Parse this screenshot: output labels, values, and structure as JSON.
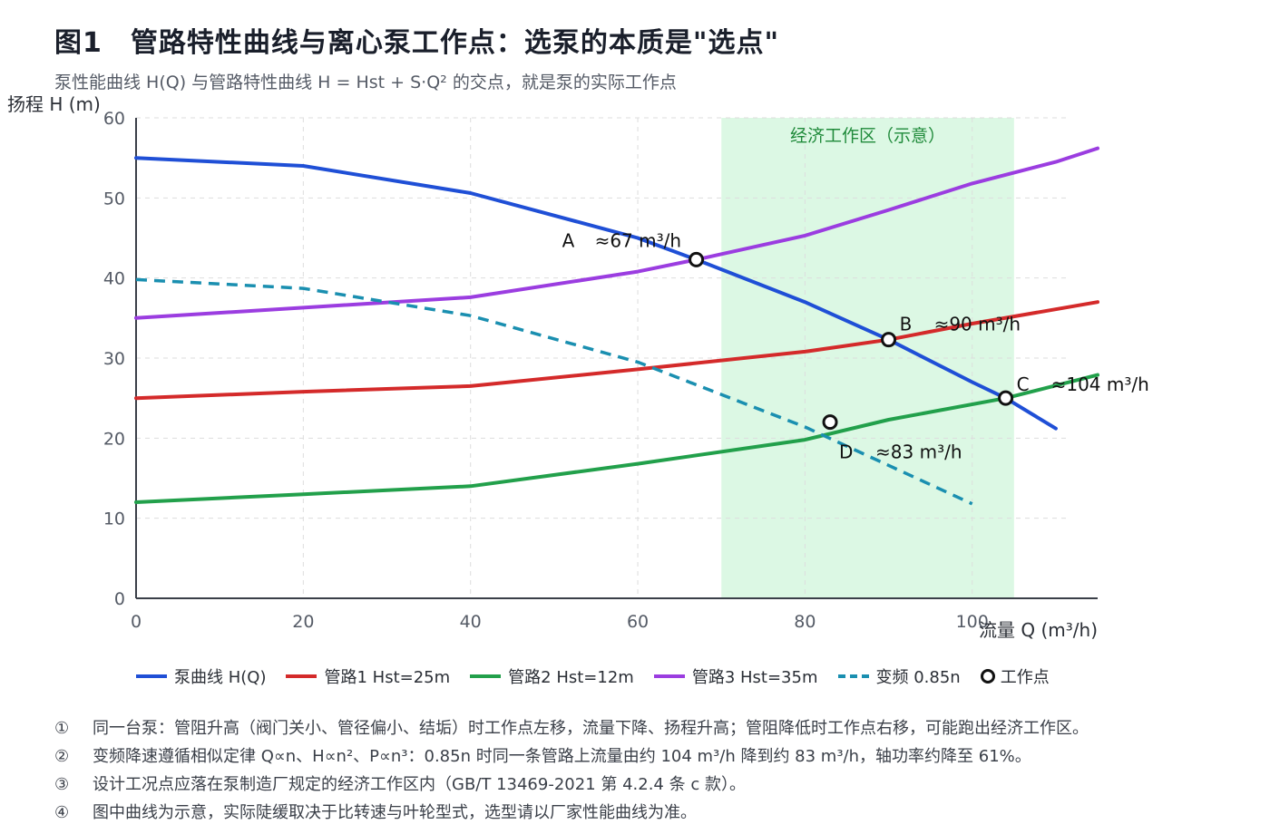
{
  "title": "图1　管路特性曲线与离心泵工作点：选泵的本质是\"选点\"",
  "subtitle": "泵性能曲线 H(Q) 与管路特性曲线 H = Hst + S·Q² 的交点，就是泵的实际工作点",
  "chart_data": {
    "type": "line",
    "ylabel": "扬程 H (m)",
    "xlabel": "流量 Q (m³/h)",
    "xlim": [
      0,
      115
    ],
    "ylim": [
      0,
      60
    ],
    "x_ticks": [
      "0",
      "20",
      "40",
      "60",
      "80",
      "100"
    ],
    "y_ticks": [
      "0",
      "10",
      "20",
      "30",
      "40",
      "50",
      "60"
    ],
    "grid": true,
    "shaded_region": {
      "label": "经济工作区（示意）",
      "x_range": [
        70,
        105
      ],
      "color": "#dcf8e4"
    },
    "series": [
      {
        "name": "泵曲线 H(Q)",
        "color": "#1f4fd6",
        "dash": false,
        "points": [
          [
            0,
            55
          ],
          [
            20,
            54
          ],
          [
            40,
            50.6
          ],
          [
            60,
            45
          ],
          [
            67,
            42.3
          ],
          [
            80,
            37
          ],
          [
            90,
            32.3
          ],
          [
            100,
            27
          ],
          [
            104,
            25
          ],
          [
            110,
            21.2
          ]
        ]
      },
      {
        "name": "管路1 Hst=25m",
        "color": "#d42a2a",
        "dash": false,
        "points": [
          [
            0,
            25
          ],
          [
            20,
            25.8
          ],
          [
            40,
            26.5
          ],
          [
            60,
            28.6
          ],
          [
            80,
            30.8
          ],
          [
            90,
            32.3
          ],
          [
            100,
            34.3
          ],
          [
            115,
            37
          ]
        ]
      },
      {
        "name": "管路2 Hst=12m",
        "color": "#22a04b",
        "dash": false,
        "points": [
          [
            0,
            12
          ],
          [
            20,
            13
          ],
          [
            40,
            14
          ],
          [
            60,
            16.8
          ],
          [
            80,
            19.8
          ],
          [
            90,
            22.3
          ],
          [
            104,
            25
          ],
          [
            115,
            27.9
          ]
        ]
      },
      {
        "name": "管路3 Hst=35m",
        "color": "#9b3de0",
        "dash": false,
        "points": [
          [
            0,
            35
          ],
          [
            20,
            36.3
          ],
          [
            40,
            37.6
          ],
          [
            60,
            40.8
          ],
          [
            67,
            42.3
          ],
          [
            80,
            45.3
          ],
          [
            90,
            48.5
          ],
          [
            100,
            51.8
          ],
          [
            110,
            54.5
          ],
          [
            115,
            56.2
          ]
        ]
      },
      {
        "name": "变频 0.85n",
        "color": "#1a8fb0",
        "dash": true,
        "points": [
          [
            0,
            39.8
          ],
          [
            20,
            38.7
          ],
          [
            40,
            35.3
          ],
          [
            60,
            29.5
          ],
          [
            80,
            21.4
          ],
          [
            100,
            11.8
          ]
        ]
      }
    ],
    "markers_legend": "工作点",
    "points": [
      {
        "id": "A",
        "label": "A",
        "value_label": "≈67 m³/h",
        "x": 67,
        "y": 42.3
      },
      {
        "id": "B",
        "label": "B",
        "value_label": "≈90 m³/h",
        "x": 90,
        "y": 32.3
      },
      {
        "id": "C",
        "label": "C",
        "value_label": "≈104 m³/h",
        "x": 104,
        "y": 25
      },
      {
        "id": "D",
        "label": "D",
        "value_label": "≈83 m³/h",
        "x": 83,
        "y": 22
      }
    ]
  },
  "notes": [
    {
      "num": "①",
      "text": "同一台泵：管阻升高（阀门关小、管径偏小、结垢）时工作点左移，流量下降、扬程升高；管阻降低时工作点右移，可能跑出经济工作区。"
    },
    {
      "num": "②",
      "text": "变频降速遵循相似定律 Q∝n、H∝n²、P∝n³：0.85n 时同一条管路上流量由约 104 m³/h 降到约 83 m³/h，轴功率约降至 61%。"
    },
    {
      "num": "③",
      "text": "设计工况点应落在泵制造厂规定的经济工作区内（GB/T 13469-2021 第 4.2.4 条 c 款）。"
    },
    {
      "num": "④",
      "text": "图中曲线为示意，实际陡缓取决于比转速与叶轮型式，选型请以厂家性能曲线为准。"
    }
  ]
}
